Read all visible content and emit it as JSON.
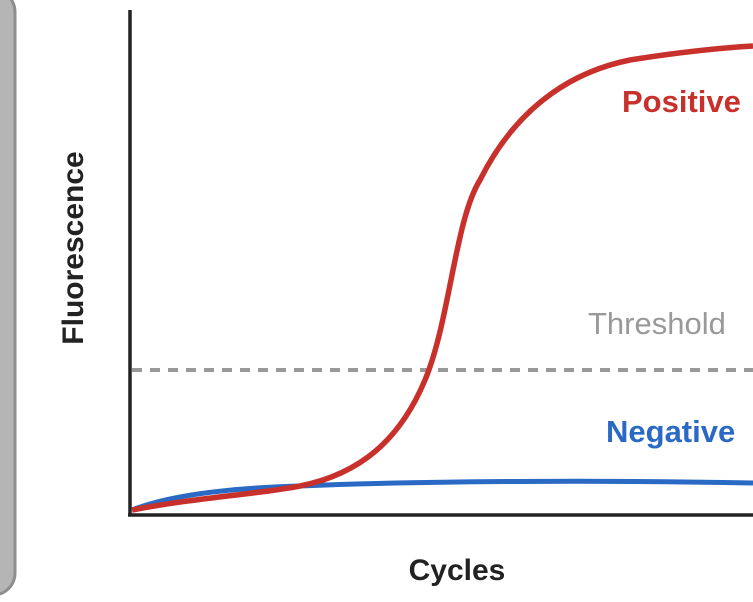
{
  "chart_data": {
    "type": "line",
    "x_label": "Cycles",
    "y_label": "Fluorescence",
    "annotations": {
      "positive": "Positive",
      "threshold": "Threshold",
      "negative": "Negative"
    },
    "colors": {
      "positive": "#c8302c",
      "negative": "#2a6ac4",
      "threshold": "#999999"
    }
  }
}
